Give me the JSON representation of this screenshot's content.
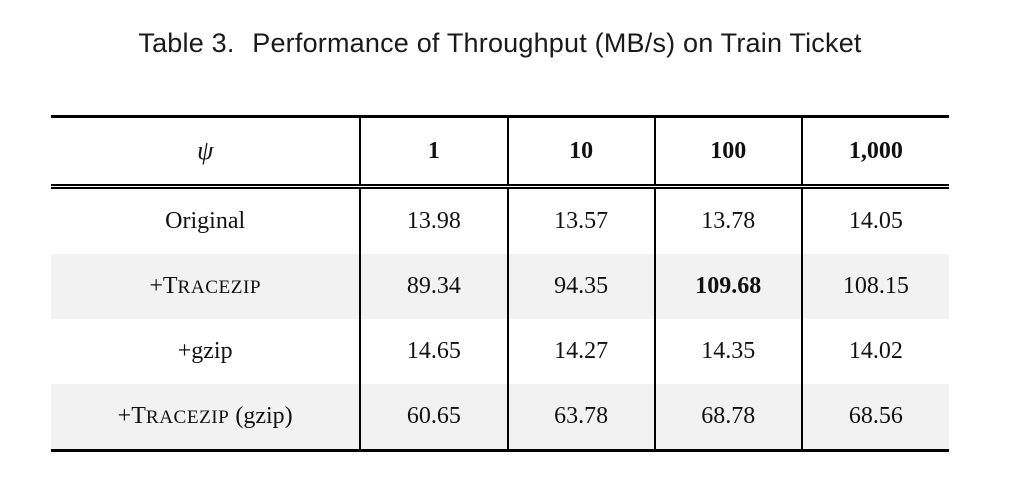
{
  "caption": {
    "label": "Table 3.",
    "text": "Performance of Throughput (MB/s) on Train Ticket"
  },
  "table": {
    "corner_symbol": "ψ",
    "columns": [
      "1",
      "10",
      "100",
      "1,000"
    ],
    "rows": [
      {
        "prefix": "",
        "name_cap": "",
        "name_sc": "",
        "name": "Original",
        "suffix": "",
        "values": [
          "13.98",
          "13.57",
          "13.78",
          "14.05"
        ]
      },
      {
        "prefix": "+",
        "name_cap": "T",
        "name_sc": "RACEZIP",
        "name": "",
        "suffix": "",
        "values": [
          "89.34",
          "94.35",
          "109.68",
          "108.15"
        ]
      },
      {
        "prefix": "",
        "name_cap": "",
        "name_sc": "",
        "name": "+gzip",
        "suffix": "",
        "values": [
          "14.65",
          "14.27",
          "14.35",
          "14.02"
        ]
      },
      {
        "prefix": "+",
        "name_cap": "T",
        "name_sc": "RACEZIP",
        "name": "",
        "suffix": " (gzip)",
        "values": [
          "60.65",
          "63.78",
          "68.78",
          "68.56"
        ]
      }
    ],
    "best_cell": {
      "row": 1,
      "col": 2
    }
  }
}
